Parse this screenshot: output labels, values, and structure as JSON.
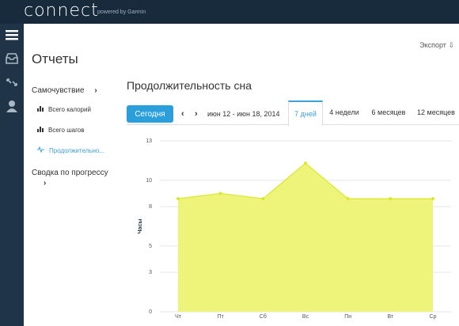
{
  "app": {
    "logo": "connect",
    "powered": "powered by Garmin"
  },
  "header": {
    "title": "Отчеты",
    "export_label": "Экспорт"
  },
  "sidebar": {
    "wellness": "Самочувствие",
    "items": [
      {
        "label": "Всего калорий"
      },
      {
        "label": "Всего шагов"
      },
      {
        "label": "Продолжительно..."
      }
    ],
    "progress": "Сводка по прогрессу"
  },
  "toolbar": {
    "today": "Сегодня",
    "range": "июн 12 - июн 18, 2014",
    "tabs": [
      "7 дней",
      "4 недели",
      "6 месяцев",
      "12 месяцев"
    ],
    "active_tab": "7 дней"
  },
  "colors": {
    "accent": "#2a9fdc",
    "area_fill": "#eef47a",
    "area_stroke": "#d9e92a"
  },
  "chart_title": "Продолжительность сна",
  "chart_data": {
    "type": "area",
    "categories": [
      "Чт",
      "Пт",
      "Сб",
      "Вс",
      "Пн",
      "Вт",
      "Ср"
    ],
    "values": [
      8.6,
      9.0,
      8.6,
      11.3,
      8.6,
      8.6,
      8.6
    ],
    "ylabel": "Часы",
    "ylim": [
      0,
      13
    ],
    "yticks": [
      "0",
      "3",
      "5",
      "8",
      "10",
      "13"
    ],
    "grid": true
  }
}
